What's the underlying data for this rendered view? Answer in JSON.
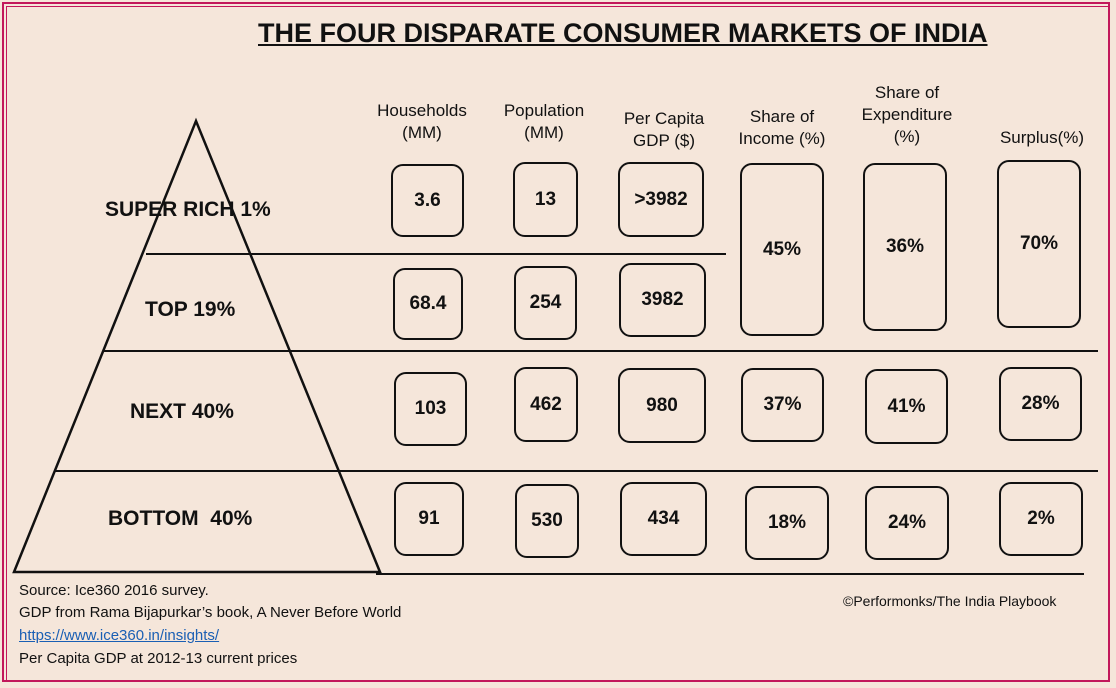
{
  "title": "THE FOUR DISPARATE CONSUMER MARKETS OF INDIA",
  "columns": {
    "households": "Households\n(MM)",
    "population": "Population\n(MM)",
    "gdp": "Per Capita\nGDP ($)",
    "income": "Share of\nIncome (%)",
    "expenditure": "Share of\nExpenditure\n(%)",
    "surplus": "Surplus(%)"
  },
  "tiers": {
    "super_rich": "SUPER RICH 1%",
    "top": "TOP 19%",
    "next": "NEXT 40%",
    "bottom": "BOTTOM  40%"
  },
  "values": {
    "super_rich": {
      "households": "3.6",
      "population": "13",
      "gdp": ">3982"
    },
    "top": {
      "households": "68.4",
      "population": "254",
      "gdp": "3982"
    },
    "top20": {
      "income": "45%",
      "expenditure": "36%",
      "surplus": "70%"
    },
    "next": {
      "households": "103",
      "population": "462",
      "gdp": "980",
      "income": "37%",
      "expenditure": "41%",
      "surplus": "28%"
    },
    "bottom": {
      "households": "91",
      "population": "530",
      "gdp": "434",
      "income": "18%",
      "expenditure": "24%",
      "surplus": "2%"
    }
  },
  "footer": {
    "source": "Source: Ice360 2016 survey.",
    "gdp_source": "GDP from Rama Bijapurkar’s book, A Never Before World",
    "link": "https://www.ice360.in/insights/",
    "prices": "Per Capita GDP at 2012-13 current prices",
    "copyright": "©Performonks/The India Playbook"
  },
  "colors": {
    "background": "#f5e6da",
    "border": "#c2185b",
    "link": "#1a5fb4"
  }
}
